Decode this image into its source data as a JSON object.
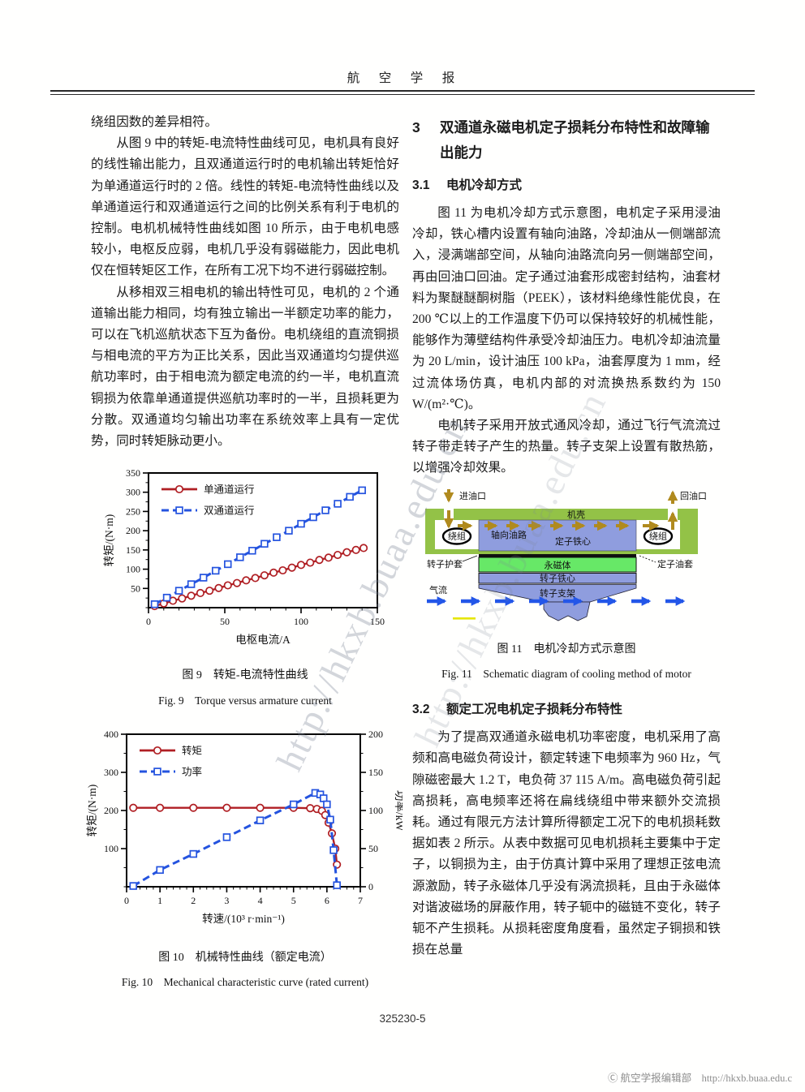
{
  "header": {
    "journal_title": "航　空　学　报"
  },
  "watermark_text": "http://hkxb.buaa.edu.cn",
  "left_column": {
    "p1": "绕组因数的差异相符。",
    "p2": "从图 9 中的转矩-电流特性曲线可见，电机具有良好的线性输出能力，且双通道运行时的电机输出转矩恰好为单通道运行时的 2 倍。线性的转矩-电流特性曲线以及单通道运行和双通道运行之间的比例关系有利于电机的控制。电机机械特性曲线如图 10 所示，由于电机电感较小，电枢反应弱，电机几乎没有弱磁能力，因此电机仅在恒转矩区工作，在所有工况下均不进行弱磁控制。",
    "p3": "从移相双三相电机的输出特性可见，电机的 2 个通道输出能力相同，均有独立输出一半额定功率的能力，可以在飞机巡航状态下互为备份。电机绕组的直流铜损与相电流的平方为正比关系，因此当双通道均匀提供巡航功率时，由于相电流为额定电流的约一半，电机直流铜损为依靠单通道提供巡航功率时的一半，且损耗更为分散。双通道均匀输出功率在系统效率上具有一定优势，同时转矩脉动更小。",
    "fig9_caption_cn": "图 9　转矩-电流特性曲线",
    "fig9_caption_en": "Fig. 9　Torque versus armature current",
    "fig10_caption_cn": "图 10　机械特性曲线（额定电流）",
    "fig10_caption_en": "Fig. 10　Mechanical characteristic curve (rated current)"
  },
  "right_column": {
    "sec3_num": "3",
    "sec3_title": "双通道永磁电机定子损耗分布特性和故障输出能力",
    "sec31_num": "3.1",
    "sec31_title": "电机冷却方式",
    "p1": "图 11 为电机冷却方式示意图，电机定子采用浸油冷却，铁心槽内设置有轴向油路，冷却油从一侧端部流入，浸满端部空间，从轴向油路流向另一侧端部空间，再由回油口回油。定子通过油套形成密封结构，油套材料为聚醚醚酮树脂（PEEK），该材料绝缘性能优良，在 200 ℃以上的工作温度下仍可以保持较好的机械性能，能够作为薄壁结构件承受冷却油压力。电机冷却油流量为 20 L/min，设计油压 100 kPa，油套厚度为 1 mm，经过流体场仿真，电机内部的对流换热系数约为 150 W/(m²·℃)。",
    "p2": "电机转子采用开放式通风冷却，通过飞行气流流过转子带走转子产生的热量。转子支架上设置有散热筋，以增强冷却效果。",
    "fig11_caption_cn": "图 11　电机冷却方式示意图",
    "fig11_caption_en": "Fig. 11　Schematic diagram of cooling method of motor",
    "sec32_num": "3.2",
    "sec32_title": "额定工况电机定子损耗分布特性",
    "p3": "为了提高双通道永磁电机功率密度，电机采用了高频和高电磁负荷设计，额定转速下电频率为 960 Hz，气隙磁密最大 1.2 T，电负荷 37 115 A/m。高电磁负荷引起高损耗，高电频率还将在扁线绕组中带来额外交流损耗。通过有限元方法计算所得额定工况下的电机损耗数据如表 2 所示。从表中数据可见电机损耗主要集中于定子，以铜损为主，由于仿真计算中采用了理想正弦电流源激励，转子永磁体几乎没有涡流损耗，且由于永磁体对谐波磁场的屏蔽作用，转子轭中的磁链不变化，转子轭不产生损耗。从损耗密度角度看，虽然定子铜损和铁损在总量"
  },
  "diagram11": {
    "labels": {
      "oil_inlet": "进油口",
      "oil_return": "回油口",
      "casing": "机壳",
      "winding_left": "绕组",
      "winding_right": "绕组",
      "axial_oil_path": "轴向油路",
      "stator_core": "定子铁心",
      "rotor_sheath": "转子护套",
      "stator_oil_sleeve": "定子油套",
      "magnet": "永磁体",
      "rotor_core": "转子铁心",
      "rotor_support": "转子支架",
      "airflow": "气流"
    },
    "colors": {
      "casing_green": "#93c247",
      "core_blue": "#8f9dde",
      "magnet_green": "#67e867",
      "oil_arrow_gold": "#b08a1e",
      "air_arrow_blue": "#2356e8",
      "highlight_yellow": "#e6e600"
    }
  },
  "footer": {
    "page_code": "325230-5",
    "credit": "Ⓒ 航空学报编辑部　http://hkxb.buaa.edu.c"
  },
  "chart_data": [
    {
      "id": "fig9",
      "type": "line",
      "title": "图 9 转矩-电流特性曲线",
      "xlabel": "电枢电流/A",
      "ylabel": "转矩/(N·m)",
      "xlim": [
        0,
        150
      ],
      "ylim": [
        0,
        350
      ],
      "xticks": [
        0,
        50,
        100,
        150
      ],
      "yticks": [
        50,
        100,
        150,
        200,
        250,
        300,
        350
      ],
      "xminor_step": 10,
      "yminor_step": 25,
      "grid": false,
      "legend_position": "top-left",
      "series": [
        {
          "name": "单通道运行",
          "color": "#b01f24",
          "dash": false,
          "marker": "circle",
          "x": [
            4,
            10,
            16,
            22,
            28,
            34,
            40,
            46,
            52,
            58,
            64,
            70,
            76,
            82,
            88,
            94,
            100,
            106,
            112,
            118,
            124,
            130,
            136,
            141
          ],
          "y": [
            4,
            11,
            18,
            24,
            31,
            38,
            44,
            51,
            58,
            64,
            71,
            77,
            84,
            91,
            97,
            104,
            111,
            117,
            124,
            130,
            137,
            144,
            150,
            155
          ]
        },
        {
          "name": "双通道运行",
          "color": "#2453df",
          "dash": true,
          "marker": "square",
          "x": [
            4,
            12,
            20,
            28,
            36,
            44,
            52,
            60,
            68,
            76,
            84,
            92,
            100,
            108,
            116,
            124,
            132,
            140
          ],
          "y": [
            9,
            26,
            44,
            61,
            78,
            96,
            113,
            131,
            148,
            166,
            183,
            200,
            218,
            235,
            253,
            270,
            288,
            305
          ]
        }
      ]
    },
    {
      "id": "fig10",
      "type": "line",
      "title": "图 10 机械特性曲线（额定电流）",
      "xlabel": "转速/(10³ r·min⁻¹)",
      "ylabel": "转矩/(N·m)",
      "y2label": "功率/kW",
      "xlim": [
        0,
        7
      ],
      "ylim": [
        0,
        400
      ],
      "y2lim": [
        0,
        200
      ],
      "xticks": [
        0,
        1,
        2,
        3,
        4,
        5,
        6,
        7
      ],
      "yticks": [
        100,
        200,
        300,
        400
      ],
      "y2ticks": [
        0,
        50,
        100,
        150,
        200
      ],
      "xminor_step": 0.2,
      "yminor_step": 50,
      "y2minor_step": 25,
      "grid": false,
      "legend_position": "top-left",
      "series": [
        {
          "name": "转矩",
          "axis": "y",
          "color": "#b01f24",
          "dash": false,
          "marker": "circle",
          "x": [
            0.2,
            1,
            2,
            3,
            4,
            5,
            5.5,
            5.7,
            5.85,
            5.95,
            6.05,
            6.15,
            6.25,
            6.3
          ],
          "y": [
            207,
            207,
            207,
            207,
            207,
            207,
            206,
            204,
            199,
            188,
            168,
            140,
            100,
            58
          ]
        },
        {
          "name": "功率",
          "axis": "y2",
          "color": "#2453df",
          "dash": true,
          "marker": "square",
          "x": [
            0.2,
            1,
            2,
            3,
            4,
            5,
            5.65,
            5.8,
            5.9,
            6.0,
            6.1,
            6.2,
            6.3
          ],
          "y": [
            1,
            22,
            43,
            65,
            87,
            108,
            123,
            121,
            116,
            108,
            88,
            48,
            2
          ]
        }
      ]
    }
  ]
}
